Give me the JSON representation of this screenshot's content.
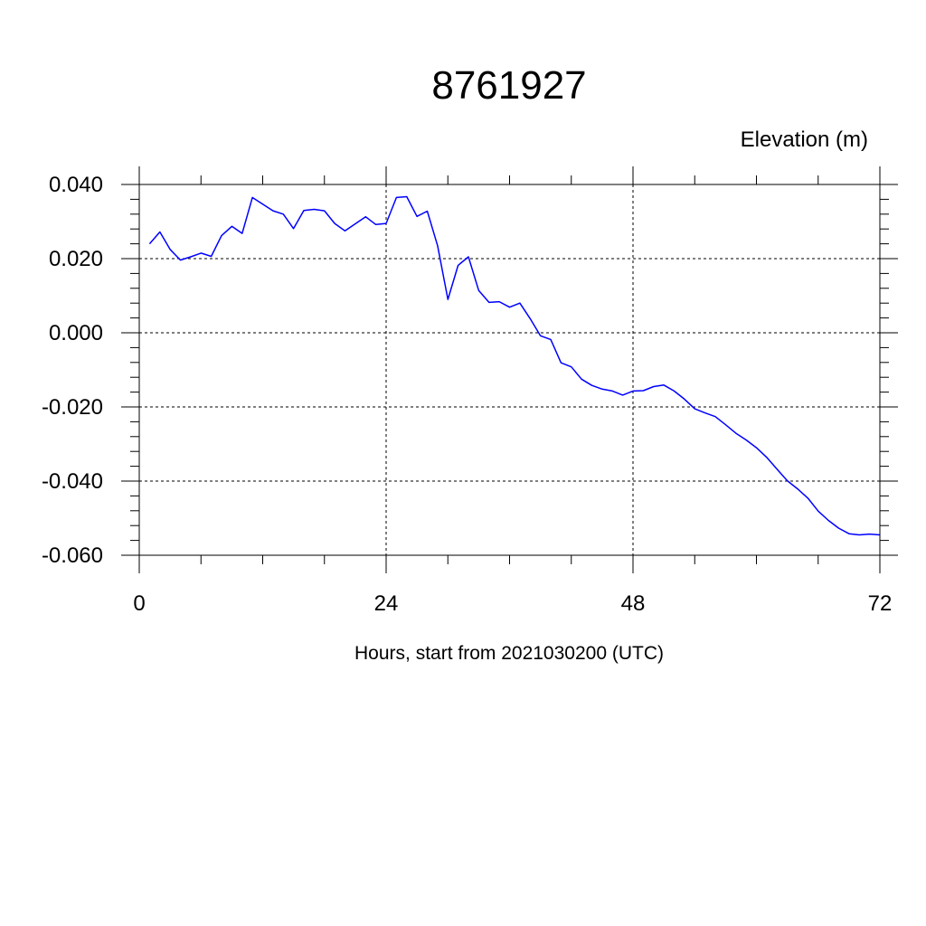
{
  "chart_data": {
    "type": "line",
    "title": "8761927",
    "ylabel": "Elevation (m)",
    "xlabel": "Hours, start from 2021030200 (UTC)",
    "xlim": [
      0,
      72
    ],
    "ylim": [
      -0.06,
      0.04
    ],
    "xticks": [
      0,
      24,
      48,
      72
    ],
    "xtick_labels": [
      "0",
      "24",
      "48",
      "72"
    ],
    "yticks": [
      0.04,
      0.02,
      0.0,
      -0.02,
      -0.04,
      -0.06
    ],
    "ytick_labels": [
      "0.040",
      "0.020",
      "0.000",
      "-0.020",
      "-0.040",
      "-0.060"
    ],
    "grid": true,
    "line_color": "#0000ff",
    "series": [
      {
        "x": [
          1,
          2,
          3,
          4,
          5,
          6,
          7,
          8,
          9,
          10,
          11,
          12,
          13,
          14,
          15,
          16,
          17,
          18,
          19,
          20,
          21,
          22,
          23,
          24,
          25,
          26,
          27,
          28,
          29,
          30,
          31,
          32,
          33,
          34,
          35,
          36,
          37,
          38,
          39,
          40,
          41,
          42,
          43,
          44,
          45,
          46,
          47,
          48,
          49,
          50,
          51,
          52,
          53,
          54,
          55,
          56,
          57,
          58,
          59,
          60,
          61,
          62,
          63,
          64,
          65,
          66,
          67,
          68,
          69,
          70,
          71,
          72
        ],
        "values": [
          0.024,
          0.0272,
          0.0225,
          0.0196,
          0.0205,
          0.0215,
          0.0206,
          0.0262,
          0.0287,
          0.0268,
          0.0365,
          0.0347,
          0.0329,
          0.032,
          0.0281,
          0.033,
          0.0333,
          0.0329,
          0.0295,
          0.0275,
          0.0294,
          0.0313,
          0.0292,
          0.0295,
          0.0365,
          0.0367,
          0.0314,
          0.0328,
          0.0235,
          0.009,
          0.0182,
          0.0205,
          0.0114,
          0.0082,
          0.0084,
          0.0069,
          0.008,
          0.0038,
          -0.0008,
          -0.0018,
          -0.0081,
          -0.0092,
          -0.0125,
          -0.0142,
          -0.0152,
          -0.0157,
          -0.0168,
          -0.0157,
          -0.0156,
          -0.0145,
          -0.0141,
          -0.0157,
          -0.0179,
          -0.0205,
          -0.0216,
          -0.0226,
          -0.0248,
          -0.0271,
          -0.0289,
          -0.031,
          -0.0336,
          -0.0368,
          -0.0399,
          -0.0421,
          -0.0446,
          -0.0481,
          -0.0506,
          -0.0527,
          -0.0542,
          -0.0545,
          -0.0543,
          -0.0545
        ]
      }
    ]
  }
}
